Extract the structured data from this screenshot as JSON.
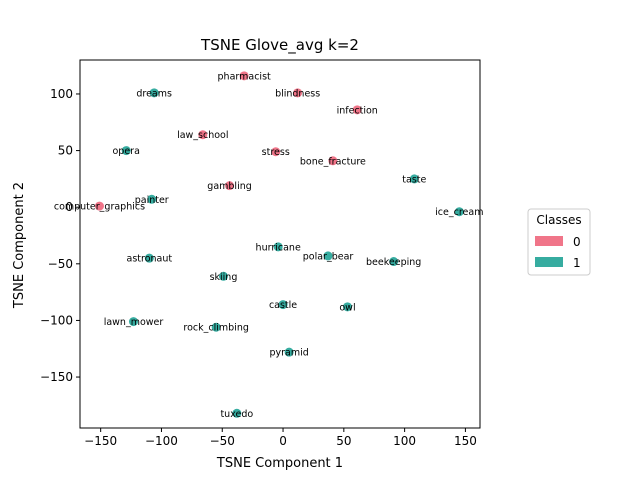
{
  "chart_data": {
    "type": "scatter",
    "title": "TSNE Glove_avg k=2",
    "xlabel": "TSNE Component 1",
    "ylabel": "TSNE Component 2",
    "xlim": [
      -167,
      162
    ],
    "ylim": [
      -195,
      130
    ],
    "xticks": [
      -150,
      -100,
      -50,
      0,
      50,
      100,
      150
    ],
    "yticks": [
      100,
      50,
      0,
      -50,
      -100,
      -150
    ],
    "grid": false,
    "legend": {
      "title": "Classes",
      "placement": "center-right",
      "entries": [
        {
          "label": "0",
          "color": "#f07589"
        },
        {
          "label": "1",
          "color": "#36aca0"
        }
      ]
    },
    "class_colors": {
      "0": "#f07589",
      "1": "#36aca0"
    },
    "points": [
      {
        "label": "pharmacist",
        "x": -32,
        "y": 116,
        "class": 0
      },
      {
        "label": "dreams",
        "x": -106,
        "y": 101,
        "class": 1
      },
      {
        "label": "blindness",
        "x": 12,
        "y": 101,
        "class": 0
      },
      {
        "label": "infection",
        "x": 61,
        "y": 86,
        "class": 0
      },
      {
        "label": "law_school",
        "x": -66,
        "y": 64,
        "class": 0
      },
      {
        "label": "opera",
        "x": -129,
        "y": 50,
        "class": 1
      },
      {
        "label": "stress",
        "x": -6,
        "y": 49,
        "class": 0
      },
      {
        "label": "bone_fracture",
        "x": 41,
        "y": 41,
        "class": 0
      },
      {
        "label": "taste",
        "x": 108,
        "y": 25,
        "class": 1
      },
      {
        "label": "gambling",
        "x": -44,
        "y": 19,
        "class": 0
      },
      {
        "label": "painter",
        "x": -108,
        "y": 7,
        "class": 1
      },
      {
        "label": "computer_graphics",
        "x": -151,
        "y": 1,
        "class": 0
      },
      {
        "label": "ice_cream",
        "x": 145,
        "y": -4,
        "class": 1
      },
      {
        "label": "hurricane",
        "x": -4,
        "y": -35,
        "class": 1
      },
      {
        "label": "polar_bear",
        "x": 37,
        "y": -43,
        "class": 1
      },
      {
        "label": "astronaut",
        "x": -110,
        "y": -45,
        "class": 1
      },
      {
        "label": "beekeeping",
        "x": 91,
        "y": -48,
        "class": 1
      },
      {
        "label": "skiing",
        "x": -49,
        "y": -61,
        "class": 1
      },
      {
        "label": "castle",
        "x": 0,
        "y": -86,
        "class": 1
      },
      {
        "label": "owl",
        "x": 53,
        "y": -88,
        "class": 1
      },
      {
        "label": "lawn_mower",
        "x": -123,
        "y": -101,
        "class": 1
      },
      {
        "label": "rock_climbing",
        "x": -55,
        "y": -106,
        "class": 1
      },
      {
        "label": "pyramid",
        "x": 5,
        "y": -128,
        "class": 1
      },
      {
        "label": "tuxedo",
        "x": -38,
        "y": -182,
        "class": 1
      }
    ]
  }
}
